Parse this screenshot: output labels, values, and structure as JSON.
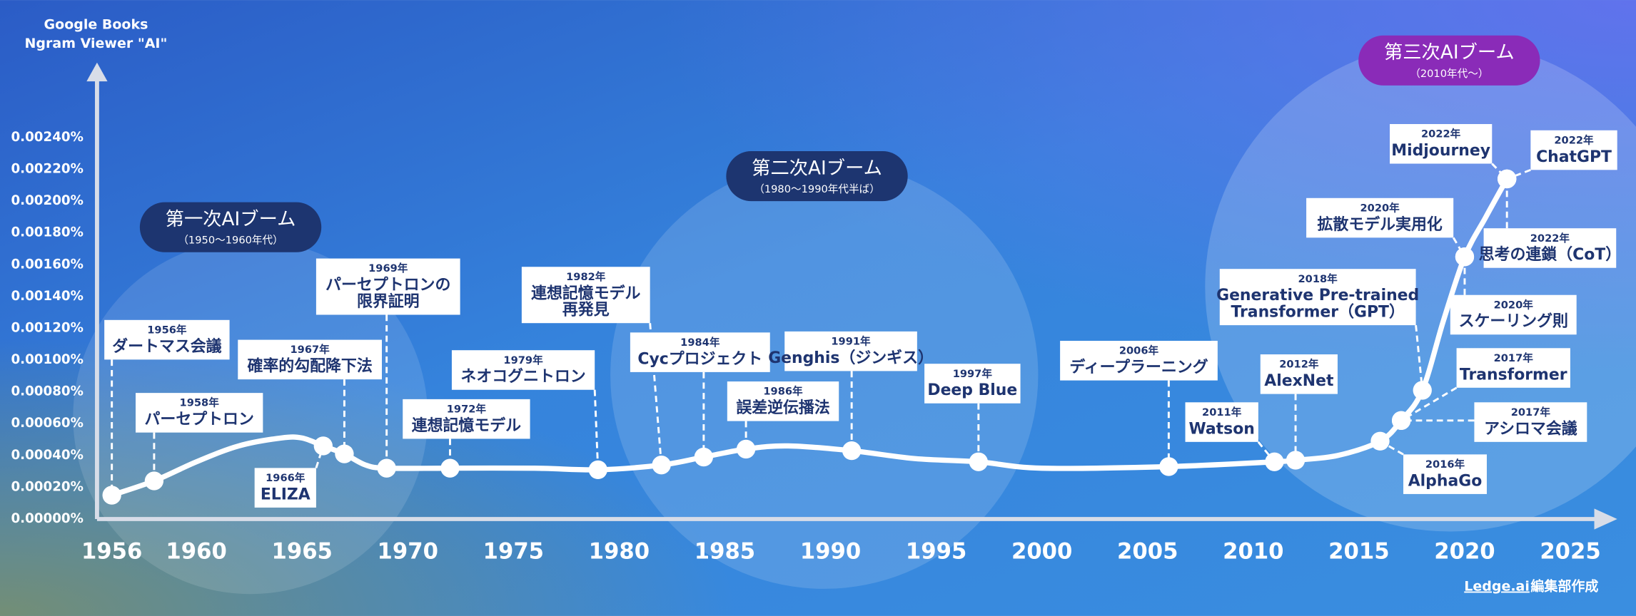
{
  "chart_data": {
    "type": "line",
    "title": [
      "Google Books",
      "Ngram Viewer \"AI\""
    ],
    "color": "#ffffff",
    "x": [
      1956,
      1958,
      1960,
      1962,
      1964,
      1965,
      1966,
      1967,
      1968,
      1969,
      1972,
      1976,
      1979,
      1982,
      1984,
      1986,
      1988,
      1991,
      1994,
      1997,
      2000,
      2006,
      2011,
      2012,
      2014,
      2016,
      2017,
      2018,
      2019,
      2020,
      2021,
      2022
    ],
    "values": [
      0.00015,
      0.00024,
      0.00036,
      0.00046,
      0.00051,
      0.00051,
      0.00046,
      0.00041,
      0.00034,
      0.00032,
      0.00032,
      0.00032,
      0.00031,
      0.00034,
      0.00039,
      0.00044,
      0.00046,
      0.00043,
      0.00038,
      0.00036,
      0.00032,
      0.00033,
      0.00036,
      0.00037,
      0.0004,
      0.00049,
      0.00062,
      0.00081,
      0.00125,
      0.00165,
      0.0019,
      0.00214
    ],
    "xlim": [
      1955.3,
      2027
    ],
    "xticks": [
      1956,
      1960,
      1965,
      1970,
      1975,
      1980,
      1985,
      1990,
      1995,
      2000,
      2005,
      2010,
      2015,
      2020,
      2025
    ],
    "ylim": [
      0,
      0.0028
    ],
    "yticks": [
      {
        "value": 0,
        "label": "0.00000%"
      },
      {
        "value": 0.0002,
        "label": "0.00020%"
      },
      {
        "value": 0.0004,
        "label": "0.00040%"
      },
      {
        "value": 0.0006,
        "label": "0.00060%"
      },
      {
        "value": 0.0008,
        "label": "0.00080%"
      },
      {
        "value": 0.001,
        "label": "0.00100%"
      },
      {
        "value": 0.0012,
        "label": "0.00120%"
      },
      {
        "value": 0.0014,
        "label": "0.00140%"
      },
      {
        "value": 0.0016,
        "label": "0.00160%"
      },
      {
        "value": 0.0018,
        "label": "0.00180%"
      },
      {
        "value": 0.002,
        "label": "0.00200%"
      },
      {
        "value": 0.0022,
        "label": "0.00220%"
      },
      {
        "value": 0.0024,
        "label": "0.00240%"
      }
    ],
    "events": [
      {
        "x": 1956,
        "year_label": "1956年",
        "value": 0.00015,
        "lines": [
          "ダートマス会議"
        ]
      },
      {
        "x": 1958,
        "year_label": "1958年",
        "value": 0.00024,
        "lines": [
          "パーセプトロン"
        ]
      },
      {
        "x": 1966,
        "year_label": "1966年",
        "value": 0.00046,
        "lines": [
          "ELIZA"
        ]
      },
      {
        "x": 1967,
        "year_label": "1967年",
        "value": 0.00041,
        "lines": [
          "確率的勾配降下法"
        ]
      },
      {
        "x": 1969,
        "year_label": "1969年",
        "value": 0.00032,
        "lines": [
          "パーセプトロンの",
          "限界証明"
        ]
      },
      {
        "x": 1972,
        "year_label": "1972年",
        "value": 0.00032,
        "lines": [
          "連想記憶モデル"
        ]
      },
      {
        "x": 1979,
        "year_label": "1979年",
        "value": 0.00031,
        "lines": [
          "ネオコグニトロン"
        ]
      },
      {
        "x": 1982,
        "year_label": "1982年",
        "value": 0.00034,
        "lines": [
          "連想記憶モデル",
          "再発見"
        ]
      },
      {
        "x": 1984,
        "year_label": "1984年",
        "value": 0.00039,
        "lines": [
          "Cycプロジェクト"
        ]
      },
      {
        "x": 1986,
        "year_label": "1986年",
        "value": 0.00044,
        "lines": [
          "誤差逆伝播法"
        ]
      },
      {
        "x": 1991,
        "year_label": "1991年",
        "value": 0.00043,
        "lines": [
          "Genghis（ジンギス）"
        ]
      },
      {
        "x": 1997,
        "year_label": "1997年",
        "value": 0.00036,
        "lines": [
          "Deep Blue"
        ]
      },
      {
        "x": 2006,
        "year_label": "2006年",
        "value": 0.00033,
        "lines": [
          "ディープラーニング"
        ]
      },
      {
        "x": 2011,
        "year_label": "2011年",
        "value": 0.00036,
        "lines": [
          "Watson"
        ]
      },
      {
        "x": 2012,
        "year_label": "2012年",
        "value": 0.00037,
        "lines": [
          "AlexNet"
        ]
      },
      {
        "x": 2016,
        "year_label": "2016年",
        "value": 0.00049,
        "lines": [
          "AlphaGo"
        ]
      },
      {
        "x": 2017,
        "year_label": "2017年",
        "value": 0.00062,
        "lines": [
          "アシロマ会議"
        ]
      },
      {
        "x": 2017,
        "year_label": "2017年",
        "value": 0.00062,
        "lines": [
          "Transformer"
        ]
      },
      {
        "x": 2018,
        "year_label": "2018年",
        "value": 0.00081,
        "lines": [
          "Generative Pre-trained",
          "Transformer（GPT）"
        ]
      },
      {
        "x": 2020,
        "year_label": "2020年",
        "value": 0.00165,
        "lines": [
          "拡散モデル実用化"
        ]
      },
      {
        "x": 2020,
        "year_label": "2020年",
        "value": 0.00165,
        "lines": [
          "スケーリング則"
        ]
      },
      {
        "x": 2022,
        "year_label": "2022年",
        "value": 0.00214,
        "lines": [
          "Midjourney"
        ]
      },
      {
        "x": 2022,
        "year_label": "2022年",
        "value": 0.00214,
        "lines": [
          "ChatGPT"
        ]
      },
      {
        "x": 2022,
        "year_label": "2022年",
        "value": 0.00214,
        "lines": [
          "思考の連鎖（CoT）"
        ]
      }
    ],
    "booms": [
      {
        "name": "第一次AIブーム",
        "period": "（1950〜1960年代）"
      },
      {
        "name": "第二次AIブーム",
        "period": "（1980〜1990年代半ば）"
      },
      {
        "name": "第三次AIブーム",
        "period": "（2010年代〜）"
      }
    ],
    "credit_link": "Ledge.ai",
    "credit": "編集部作成"
  }
}
